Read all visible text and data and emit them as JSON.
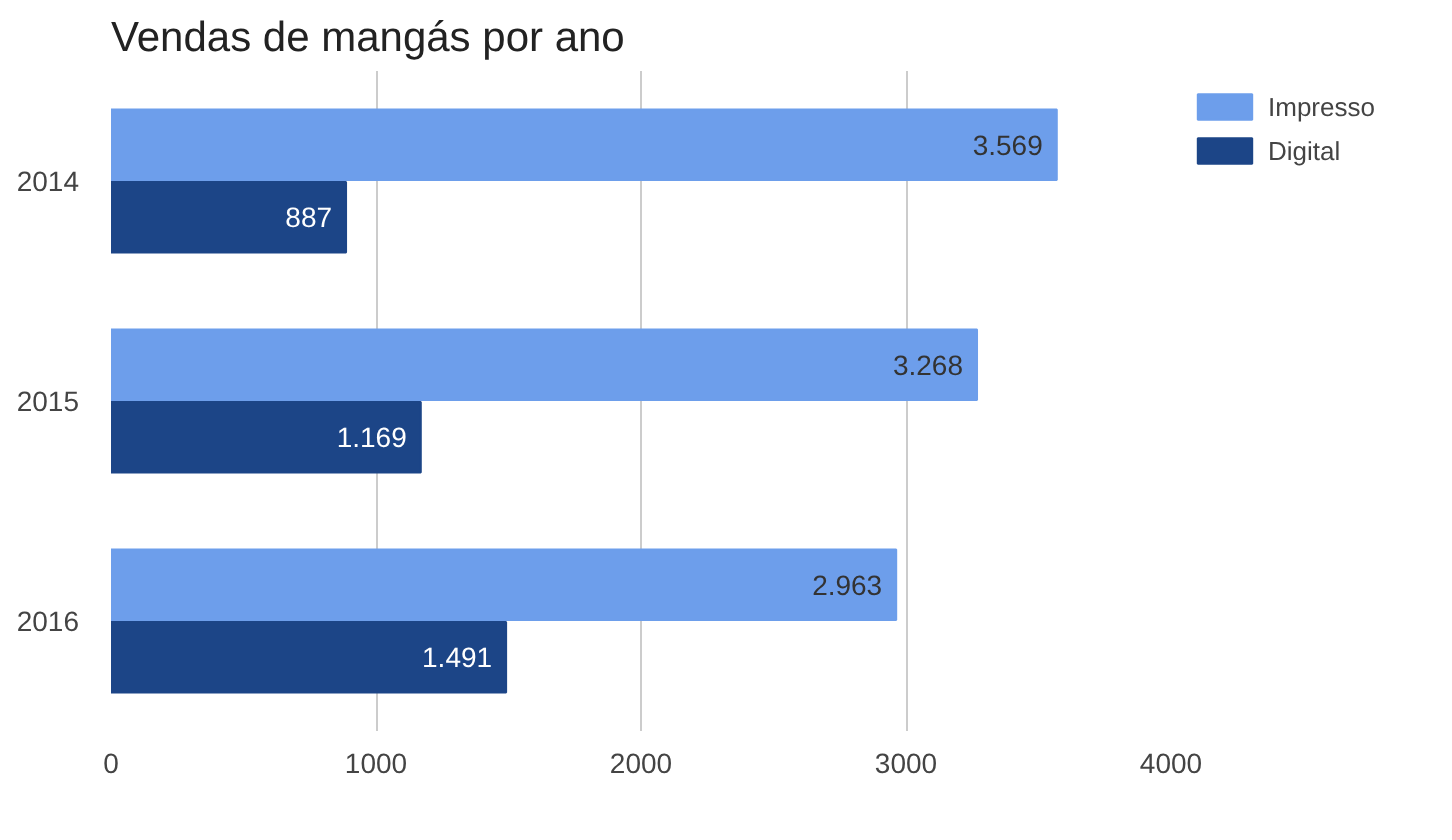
{
  "chart_data": {
    "type": "bar",
    "orientation": "horizontal",
    "title": "Vendas de mangás por ano",
    "categories": [
      "2014",
      "2015",
      "2016"
    ],
    "series": [
      {
        "name": "Impresso",
        "color": "#6d9eeb",
        "values": [
          3569,
          3268,
          2963
        ],
        "value_labels": [
          "3.569",
          "3.268",
          "2.963"
        ]
      },
      {
        "name": "Digital",
        "color": "#1c4587",
        "values": [
          887,
          1169,
          1491
        ],
        "value_labels": [
          "887",
          "1.169",
          "1.491"
        ]
      }
    ],
    "xlim": [
      0,
      4000
    ],
    "xticks": [
      0,
      1000,
      2000,
      3000,
      4000
    ],
    "grid": "x",
    "legend": "top right"
  }
}
